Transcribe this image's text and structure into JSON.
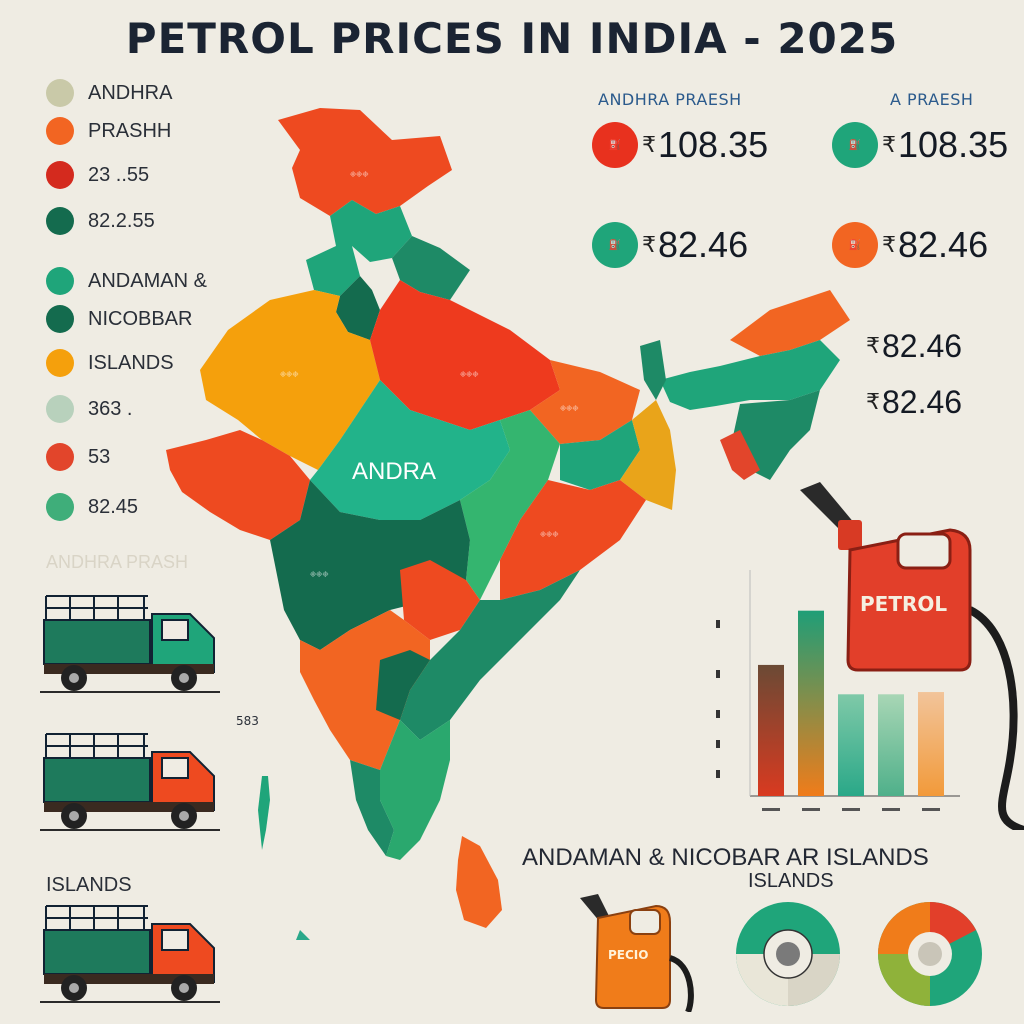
{
  "title": "PETROL PRICES IN INDIA - 2025",
  "legend": [
    {
      "label": "ANDHRA",
      "color": "#c9c9a8"
    },
    {
      "label": "PRASHH",
      "color": "#f26522"
    },
    {
      "label": "23 ..55",
      "color": "#d42a1e"
    },
    {
      "label": "82.2.55",
      "color": "#146b4e"
    },
    {
      "label": "ANDAMAN &",
      "color": "#1fa57a"
    },
    {
      "label": "NICOBBAR",
      "color": "#146b4e"
    },
    {
      "label": "ISLANDS",
      "color": "#f5a00c"
    },
    {
      "label": "363 .",
      "color": "#b8d1bc"
    },
    {
      "label": "53",
      "color": "#e2452b"
    },
    {
      "label": "82.45",
      "color": "#3fae7a"
    }
  ],
  "legend_faded": "ANDHRA PRASH",
  "headers": {
    "left": "ANDHRA PRAESH",
    "right": "A PRAESH"
  },
  "prices": [
    {
      "value": "108.35",
      "dot_color": "#e8311e",
      "icon": "pump-icon"
    },
    {
      "value": "108.35",
      "dot_color": "#1fa57a",
      "icon": "pump-icon"
    },
    {
      "value": "82.46",
      "dot_color": "#1fa57a",
      "icon": "pump-icon"
    },
    {
      "value": "82.46",
      "dot_color": "#f26522",
      "icon": "pump-icon"
    },
    {
      "value": "82.46",
      "dot_color": null,
      "icon": null
    },
    {
      "value": "82.46",
      "dot_color": null,
      "icon": null
    }
  ],
  "rupee_symbol": "₹",
  "map_labels": {
    "center": "ANDRA"
  },
  "truck_label": "ISLANDS",
  "side_number": "583",
  "can_label": "PETROL",
  "small_can_label": "PECIO",
  "bottom_title": {
    "line1": "ANDAMAN & NICOBAR AR ISLANDS",
    "line2": "ISLANDS"
  },
  "chart_data": {
    "type": "bar",
    "categories": [
      "",
      "",
      "",
      "",
      ""
    ],
    "series": [
      {
        "values": [
          58,
          82,
          45,
          45,
          46
        ]
      }
    ],
    "colors": [
      [
        "#d93a20",
        "#6b4a35"
      ],
      [
        "#f07c1a",
        "#1f9e77"
      ],
      [
        "#2aa888",
        "#7fc9a8"
      ],
      [
        "#4fb08a",
        "#a8d6b5"
      ],
      [
        "#f29a3a",
        "#f2c49a"
      ]
    ],
    "ylim": [
      0,
      100
    ]
  },
  "colors": {
    "red": "#e8311e",
    "orange": "#f26522",
    "green": "#1fa57a",
    "dark_green": "#146b4e",
    "saffron": "#f5a00c",
    "background": "#efece3"
  }
}
